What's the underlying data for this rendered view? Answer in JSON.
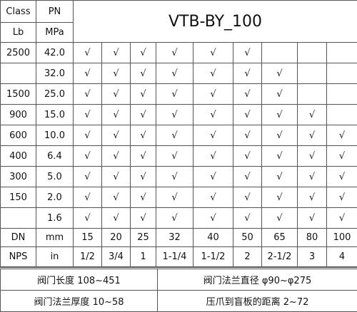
{
  "header": {
    "class_label": "Class",
    "pn_label": "PN",
    "lb_label": "Lb",
    "mpa_label": "MPa",
    "title": "VTB-BY_100"
  },
  "rows": [
    {
      "class": "2500",
      "pn": "42.0",
      "checks": [
        "√",
        "√",
        "√",
        "√",
        "√",
        "√"
      ]
    },
    {
      "pn": "32.0",
      "checks": [
        "√",
        "√",
        "√",
        "√",
        "√",
        "√",
        "√"
      ]
    },
    {
      "class": "1500",
      "pn": "25.0",
      "checks": [
        "√",
        "√",
        "√",
        "√",
        "√",
        "√",
        "√"
      ]
    },
    {
      "class": "900",
      "pn": "15.0",
      "checks": [
        "√",
        "√",
        "√",
        "√",
        "√",
        "√",
        "√",
        "√"
      ]
    },
    {
      "class": "600",
      "pn": "10.0",
      "checks": [
        "√",
        "√",
        "√",
        "√",
        "√",
        "√",
        "√",
        "√",
        "√"
      ]
    },
    {
      "class": "400",
      "pn": "6.4",
      "checks": [
        "√",
        "√",
        "√",
        "√",
        "√",
        "√",
        "√",
        "√",
        "√"
      ]
    },
    {
      "class": "300",
      "pn": "5.0",
      "checks": [
        "√",
        "√",
        "√",
        "√",
        "√",
        "√",
        "√",
        "√",
        "√"
      ]
    },
    {
      "class": "150",
      "pn": "2.0",
      "checks": [
        "√",
        "√",
        "√",
        "√",
        "√",
        "√",
        "√",
        "√",
        "√"
      ]
    },
    {
      "pn": "1.6",
      "checks": [
        "√",
        "√",
        "√",
        "√",
        "√",
        "√",
        "√",
        "√",
        "√"
      ]
    }
  ],
  "dn": {
    "label": "DN",
    "unit": "mm",
    "values": [
      "15",
      "20",
      "25",
      "32",
      "40",
      "50",
      "65",
      "80",
      "100"
    ]
  },
  "nps": {
    "label": "NPS",
    "unit": "in",
    "values": [
      "1/2",
      "3/4",
      "1",
      "1-1/4",
      "1-1/2",
      "2",
      "2-1/2",
      "3",
      "4"
    ]
  },
  "footer": [
    [
      "阀门长度 108~451",
      "阀门法兰直径 φ90~φ275"
    ],
    [
      "阀门法兰厚度 10~58",
      "压爪到盲板的距离 2~72"
    ]
  ]
}
